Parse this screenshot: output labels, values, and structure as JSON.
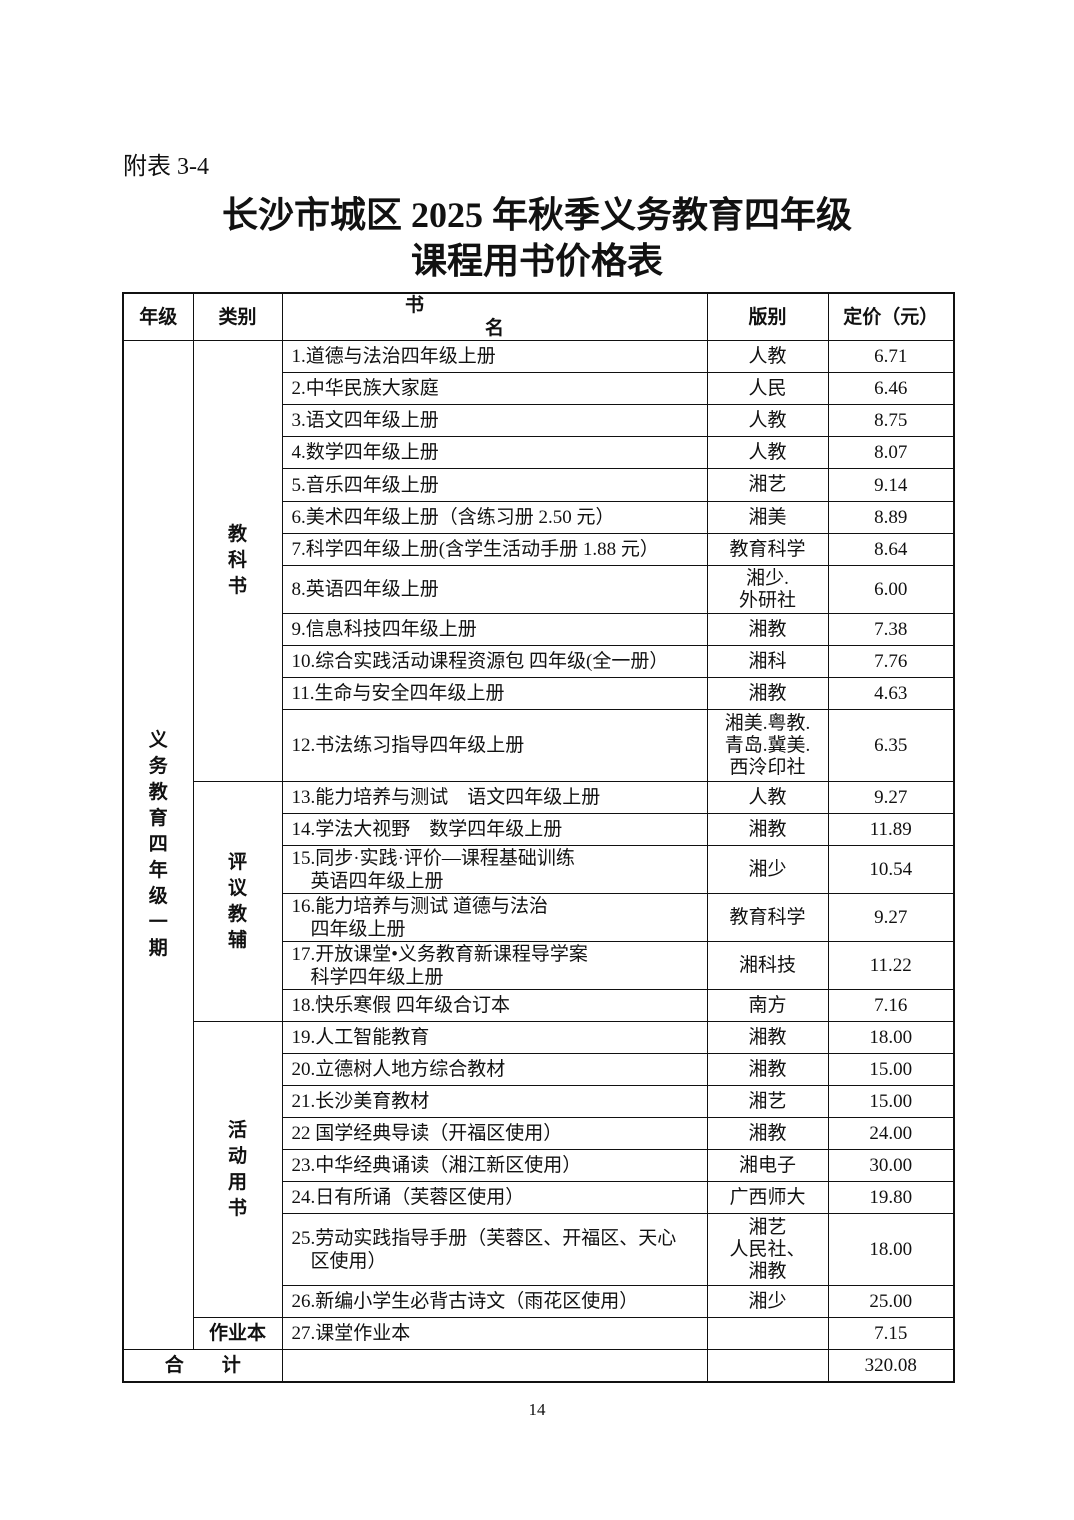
{
  "appendix_label": "附表 3-4",
  "title_line1": "长沙市城区 2025 年秋季义务教育四年级",
  "title_line2": "课程用书价格表",
  "headers": {
    "grade": "年级",
    "category": "类别",
    "name_a": "书",
    "name_b": "名",
    "publisher": "版别",
    "price": "定价（元）"
  },
  "grade_label": "义务教育四年级一期",
  "categories": {
    "textbook": "教科书",
    "assessment": "评议教辅",
    "activity": "活动用书",
    "homework": "作业本"
  },
  "rows": [
    {
      "name": "1.道德与法治四年级上册",
      "publisher": "人教",
      "price": "6.71"
    },
    {
      "name": "2.中华民族大家庭",
      "publisher": "人民",
      "price": "6.46"
    },
    {
      "name": "3.语文四年级上册",
      "publisher": "人教",
      "price": "8.75"
    },
    {
      "name": "4.数学四年级上册",
      "publisher": "人教",
      "price": "8.07"
    },
    {
      "name": "5.音乐四年级上册",
      "publisher": "湘艺",
      "price": "9.14"
    },
    {
      "name": "6.美术四年级上册（含练习册 2.50 元）",
      "publisher": "湘美",
      "price": "8.89"
    },
    {
      "name": "7.科学四年级上册(含学生活动手册 1.88 元）",
      "publisher": "教育科学",
      "price": "8.64"
    },
    {
      "name": "8.英语四年级上册",
      "publisher": "湘少.\n外研社",
      "price": "6.00"
    },
    {
      "name": "9.信息科技四年级上册",
      "publisher": "湘教",
      "price": "7.38"
    },
    {
      "name": "10.综合实践活动课程资源包 四年级(全一册）",
      "publisher": "湘科",
      "price": "7.76"
    },
    {
      "name": "11.生命与安全四年级上册",
      "publisher": "湘教",
      "price": "4.63"
    },
    {
      "name": "12.书法练习指导四年级上册",
      "publisher": "湘美.粤教.\n青岛.冀美.\n西泠印社",
      "price": "6.35"
    },
    {
      "name": "13.能力培养与测试　语文四年级上册",
      "publisher": "人教",
      "price": "9.27"
    },
    {
      "name": "14.学法大视野　数学四年级上册",
      "publisher": "湘教",
      "price": "11.89"
    },
    {
      "name": "15.同步·实践·评价—课程基础训练\n　英语四年级上册",
      "publisher": "湘少",
      "price": "10.54"
    },
    {
      "name": "16.能力培养与测试 道德与法治\n　四年级上册",
      "publisher": "教育科学",
      "price": "9.27"
    },
    {
      "name": "17.开放课堂•义务教育新课程导学案\n　科学四年级上册",
      "publisher": "湘科技",
      "price": "11.22"
    },
    {
      "name": "18.快乐寒假 四年级合订本",
      "publisher": "南方",
      "price": "7.16"
    },
    {
      "name": "19.人工智能教育",
      "publisher": "湘教",
      "price": "18.00"
    },
    {
      "name": "20.立德树人地方综合教材",
      "publisher": "湘教",
      "price": "15.00"
    },
    {
      "name": "21.长沙美育教材",
      "publisher": "湘艺",
      "price": "15.00"
    },
    {
      "name": "22 国学经典导读（开福区使用）",
      "publisher": "湘教",
      "price": "24.00"
    },
    {
      "name": "23.中华经典诵读（湘江新区使用）",
      "publisher": "湘电子",
      "price": "30.00"
    },
    {
      "name": "24.日有所诵（芙蓉区使用）",
      "publisher": "广西师大",
      "price": "19.80"
    },
    {
      "name": "25.劳动实践指导手册（芙蓉区、开福区、天心\n　区使用）",
      "publisher": "湘艺\n人民社、\n湘教",
      "price": "18.00"
    },
    {
      "name": "26.新编小学生必背古诗文（雨花区使用）",
      "publisher": "湘少",
      "price": "25.00"
    },
    {
      "name": "27.课堂作业本",
      "publisher": "",
      "price": "7.15"
    }
  ],
  "total": {
    "label": "合　　计",
    "price": "320.08"
  },
  "page_number": "14"
}
